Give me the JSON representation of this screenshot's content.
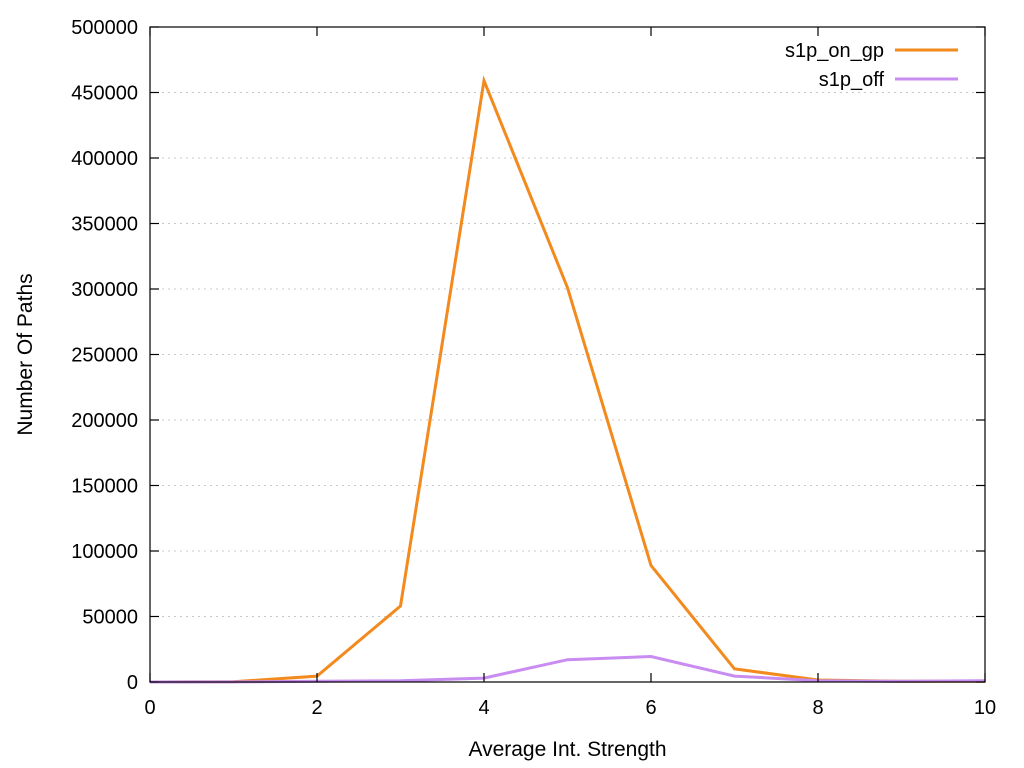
{
  "chart_data": {
    "type": "line",
    "xlabel": "Average Int. Strength",
    "ylabel": "Number Of Paths",
    "xlim": [
      0,
      10
    ],
    "ylim": [
      0,
      500000
    ],
    "x_ticks": [
      0,
      2,
      4,
      6,
      8,
      10
    ],
    "x_tick_labels": [
      "0",
      "2",
      "4",
      "6",
      "8",
      "10"
    ],
    "y_ticks": [
      0,
      50000,
      100000,
      150000,
      200000,
      250000,
      300000,
      350000,
      400000,
      450000,
      500000
    ],
    "y_tick_labels": [
      "0",
      "50000",
      "100000",
      "150000",
      "200000",
      "250000",
      "300000",
      "350000",
      "400000",
      "450000",
      "500000"
    ],
    "grid": "horizontal dotted",
    "legend_position": "top-right",
    "series": [
      {
        "name": "s1p_on_gp",
        "color": "#f28a1e",
        "x": [
          0,
          1,
          2,
          3,
          4,
          5,
          6,
          7,
          8,
          9,
          10
        ],
        "values": [
          0,
          200,
          4500,
          58000,
          459000,
          301000,
          89000,
          10000,
          1500,
          500,
          500
        ]
      },
      {
        "name": "s1p_off",
        "color": "#c98cf0",
        "x": [
          0,
          1,
          2,
          3,
          4,
          5,
          6,
          7,
          8,
          9,
          10
        ],
        "values": [
          0,
          100,
          500,
          1000,
          3000,
          17000,
          19500,
          4500,
          1000,
          500,
          1000
        ]
      }
    ]
  }
}
